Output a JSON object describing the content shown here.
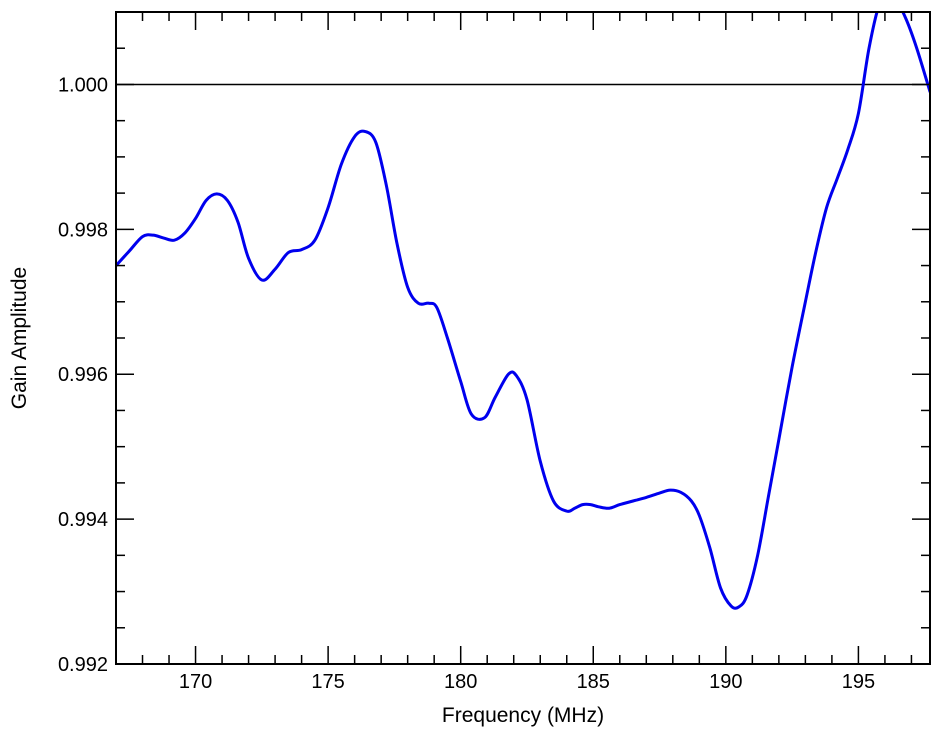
{
  "chart_data": {
    "type": "line",
    "title": "",
    "xlabel": "Frequency (MHz)",
    "ylabel": "Gain Amplitude",
    "xlim": [
      167.0,
      197.7
    ],
    "ylim": [
      0.992,
      1.001
    ],
    "x_ticks": [
      170,
      175,
      180,
      185,
      190,
      195
    ],
    "x_tick_labels": [
      "170",
      "175",
      "180",
      "185",
      "190",
      "195"
    ],
    "y_ticks": [
      0.992,
      0.994,
      0.996,
      0.998,
      1.0
    ],
    "y_tick_labels": [
      "0.992",
      "0.994",
      "0.996",
      "0.998",
      "1.000"
    ],
    "x_minor_step": 1,
    "y_minor_step": 0.0005,
    "grid": false,
    "reference_lines": [
      {
        "y": 1.0,
        "color": "#000000"
      }
    ],
    "series": [
      {
        "color": "#0000ee",
        "x": [
          167.0,
          167.5,
          168.0,
          168.4,
          168.8,
          169.2,
          169.6,
          170.0,
          170.4,
          170.8,
          171.2,
          171.6,
          172.0,
          172.5,
          173.0,
          173.5,
          174.0,
          174.5,
          175.0,
          175.5,
          176.0,
          176.4,
          176.8,
          177.2,
          177.6,
          178.0,
          178.4,
          178.8,
          179.1,
          179.5,
          180.0,
          180.4,
          180.9,
          181.3,
          181.8,
          182.1,
          182.5,
          183.0,
          183.5,
          184.0,
          184.3,
          184.6,
          184.9,
          185.2,
          185.6,
          186.0,
          186.5,
          187.0,
          187.5,
          187.9,
          188.3,
          188.7,
          189.0,
          189.4,
          189.8,
          190.2,
          190.5,
          190.8,
          191.2,
          191.6,
          192.0,
          192.5,
          193.0,
          193.4,
          193.8,
          194.2,
          194.6,
          195.0,
          195.4,
          195.8,
          196.1,
          196.4,
          196.8,
          197.2,
          197.7
        ],
        "y": [
          0.9975,
          0.9977,
          0.9979,
          0.99792,
          0.99788,
          0.99785,
          0.99795,
          0.99815,
          0.9984,
          0.99849,
          0.9984,
          0.9981,
          0.9976,
          0.9973,
          0.99745,
          0.99768,
          0.99772,
          0.99785,
          0.9983,
          0.9989,
          0.99928,
          0.99935,
          0.9992,
          0.9986,
          0.9978,
          0.9972,
          0.99698,
          0.99698,
          0.99692,
          0.9965,
          0.9959,
          0.99545,
          0.9954,
          0.99568,
          0.996,
          0.99598,
          0.99565,
          0.9948,
          0.99425,
          0.99411,
          0.99415,
          0.9942,
          0.9942,
          0.99417,
          0.99415,
          0.9942,
          0.99425,
          0.9943,
          0.99436,
          0.9944,
          0.99437,
          0.99425,
          0.99405,
          0.9936,
          0.99305,
          0.9928,
          0.99279,
          0.99295,
          0.9935,
          0.9943,
          0.9951,
          0.9961,
          0.997,
          0.9977,
          0.9983,
          0.9987,
          0.9991,
          0.9996,
          1.0005,
          1.00112,
          1.00122,
          1.00118,
          1.0009,
          1.0005,
          0.9999
        ]
      }
    ]
  }
}
